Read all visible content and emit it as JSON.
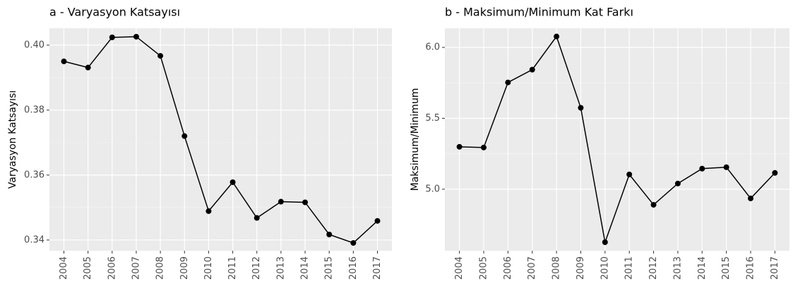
{
  "chart_data": [
    {
      "type": "line",
      "title": "a - Varyasyon Katsayısı",
      "y_label": "Varyasyon Katsayısı",
      "categories": [
        "2004",
        "2005",
        "2006",
        "2007",
        "2008",
        "2009",
        "2010",
        "2011",
        "2012",
        "2013",
        "2014",
        "2015",
        "2016",
        "2017"
      ],
      "values": [
        0.395,
        0.3931,
        0.4024,
        0.4026,
        0.3967,
        0.372,
        0.3489,
        0.3578,
        0.3468,
        0.3518,
        0.3516,
        0.3417,
        0.3391,
        0.3459
      ],
      "color": "#000000",
      "ylim": [
        0.3367,
        0.4052
      ],
      "yticks": [
        {
          "value": 0.34,
          "label": "0.34"
        },
        {
          "value": 0.36,
          "label": "0.36"
        },
        {
          "value": 0.38,
          "label": "0.38"
        },
        {
          "value": 0.4,
          "label": "0.40"
        }
      ],
      "grid": true
    },
    {
      "type": "line",
      "title": "b - Maksimum/Minimum Kat Farkı",
      "y_label": "Maksimum/Minimum",
      "categories": [
        "2004",
        "2005",
        "2006",
        "2007",
        "2008",
        "2009",
        "2010",
        "2011",
        "2012",
        "2013",
        "2014",
        "2015",
        "2016",
        "2017"
      ],
      "values": [
        5.299,
        5.294,
        5.753,
        5.843,
        6.077,
        5.574,
        4.626,
        5.104,
        4.89,
        5.04,
        5.145,
        5.155,
        4.935,
        5.115
      ],
      "color": "#000000",
      "ylim": [
        4.566,
        6.135
      ],
      "yticks": [
        {
          "value": 5.0,
          "label": "5.0"
        },
        {
          "value": 5.5,
          "label": "5.5"
        },
        {
          "value": 6.0,
          "label": "6.0"
        }
      ],
      "grid": true
    }
  ]
}
